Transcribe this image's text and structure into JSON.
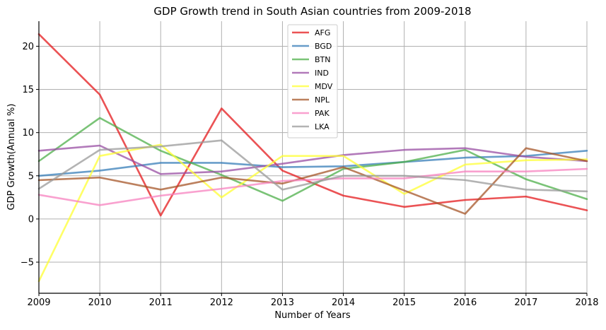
{
  "chart_data": {
    "type": "line",
    "title": "GDP Growth trend in South Asian countries from 2009-2018",
    "xlabel": "Number of Years",
    "ylabel": "GDP Growth(Annual %)",
    "x": [
      2009,
      2010,
      2011,
      2012,
      2013,
      2014,
      2015,
      2016,
      2017,
      2018
    ],
    "xlim": [
      2009,
      2018
    ],
    "ylim": [
      -8.6,
      22.9
    ],
    "yticks": [
      -5,
      0,
      5,
      10,
      15,
      20
    ],
    "grid": true,
    "legend_position": "top-center",
    "series": [
      {
        "name": "AFG",
        "color": "#e41a1c",
        "values": [
          21.4,
          14.4,
          0.4,
          12.8,
          5.6,
          2.7,
          1.4,
          2.2,
          2.6,
          1.0
        ]
      },
      {
        "name": "BGD",
        "color": "#377eb8",
        "values": [
          5.0,
          5.6,
          6.5,
          6.5,
          6.0,
          6.1,
          6.6,
          7.1,
          7.3,
          7.9
        ]
      },
      {
        "name": "BTN",
        "color": "#4daf4a",
        "values": [
          6.7,
          11.7,
          7.9,
          5.1,
          2.1,
          5.8,
          6.6,
          8.0,
          4.6,
          2.3
        ]
      },
      {
        "name": "IND",
        "color": "#984ea3",
        "values": [
          7.9,
          8.5,
          5.2,
          5.5,
          6.4,
          7.4,
          8.0,
          8.2,
          7.2,
          6.7
        ]
      },
      {
        "name": "MDV",
        "color": "#ffff33",
        "values": [
          -7.2,
          7.3,
          8.6,
          2.5,
          7.3,
          7.3,
          2.9,
          6.3,
          6.8,
          6.9
        ]
      },
      {
        "name": "NPL",
        "color": "#a65628",
        "values": [
          4.5,
          4.8,
          3.4,
          4.8,
          4.1,
          6.0,
          3.3,
          0.6,
          8.2,
          6.7
        ]
      },
      {
        "name": "PAK",
        "color": "#f781bf",
        "values": [
          2.8,
          1.6,
          2.7,
          3.5,
          4.4,
          4.7,
          4.7,
          5.5,
          5.5,
          5.8
        ]
      },
      {
        "name": "LKA",
        "color": "#999999",
        "values": [
          3.5,
          8.0,
          8.4,
          9.1,
          3.4,
          5.0,
          5.0,
          4.5,
          3.4,
          3.2
        ]
      }
    ]
  }
}
